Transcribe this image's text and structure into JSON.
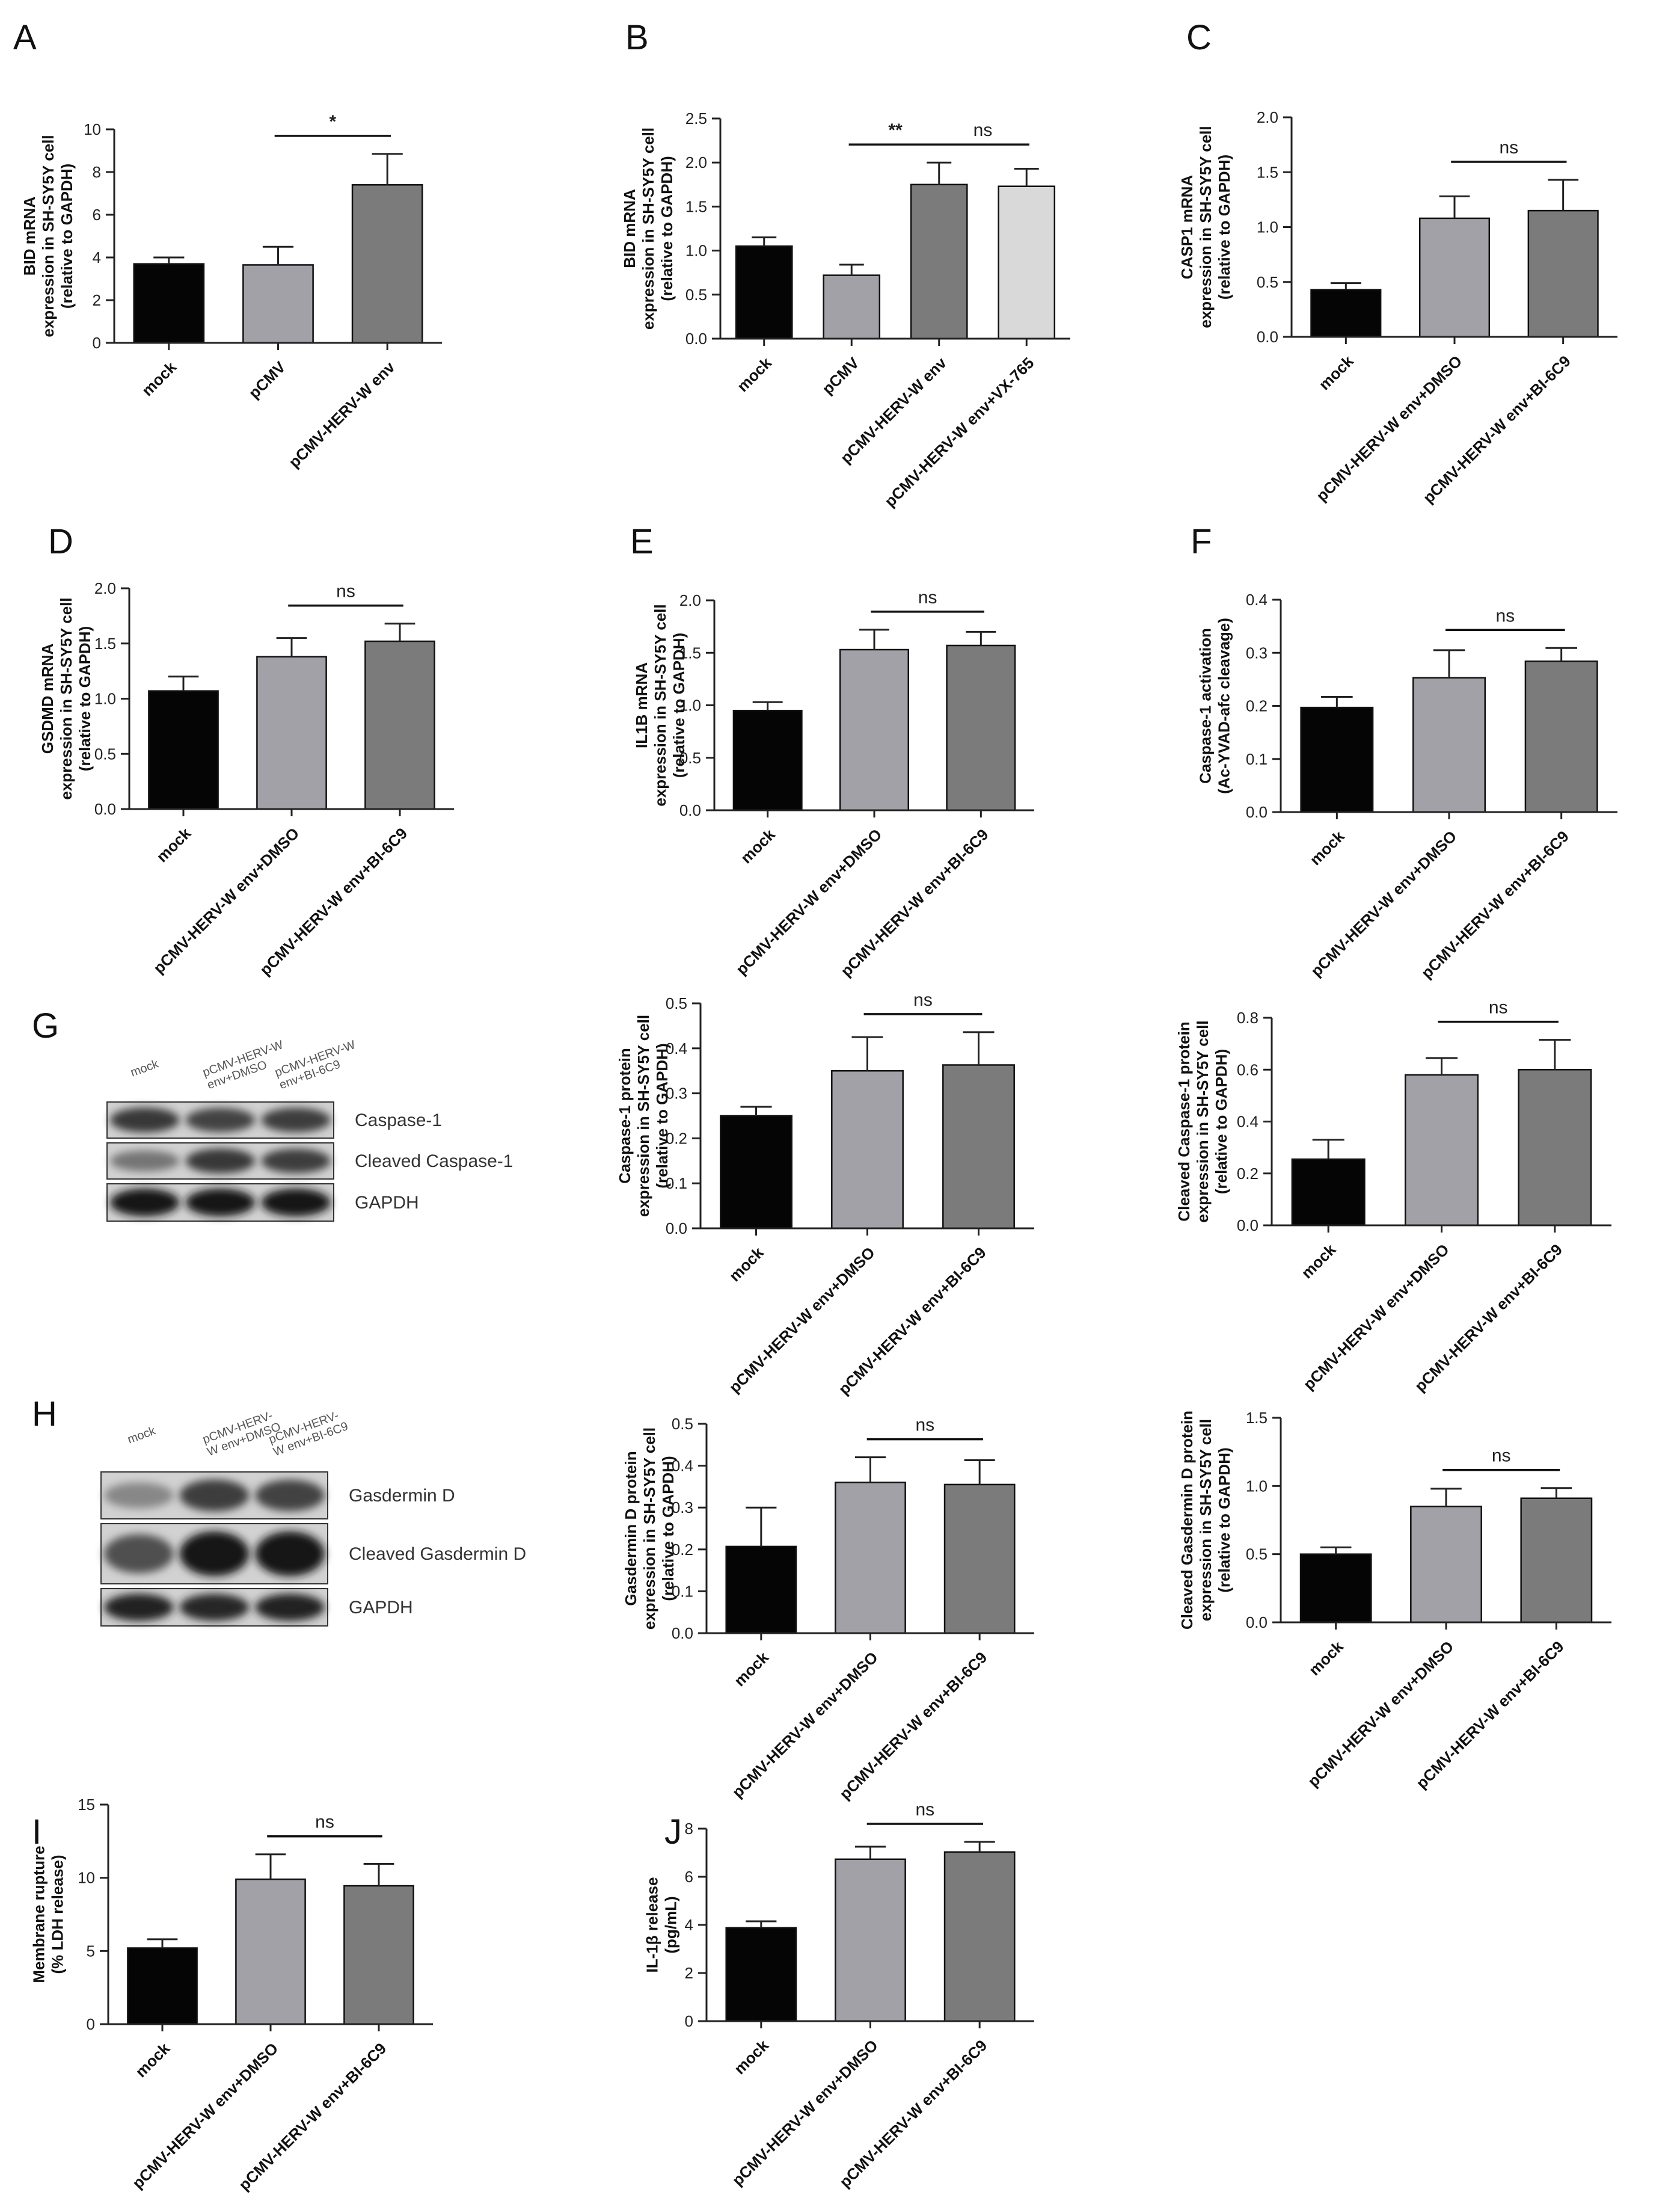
{
  "chart_data": [
    {
      "id": "A",
      "panel_letter": "A",
      "type": "bar",
      "ylabel": [
        "BID mRNA",
        "expression in SH-SY5Y cell",
        "(relative to GAPDH)"
      ],
      "categories": [
        "mock",
        "pCMV",
        "pCMV-HERV-W env"
      ],
      "values": [
        3.7,
        3.65,
        7.4
      ],
      "errors": [
        0.3,
        0.85,
        1.45
      ],
      "colors": [
        "#050505",
        "#a2a1a8",
        "#7b7b7b"
      ],
      "ylim": [
        0,
        10
      ],
      "yticks": [
        "0",
        "2",
        "4",
        "6",
        "8",
        "10"
      ],
      "brackets": [
        {
          "from": 1,
          "to": 2,
          "label": "*"
        }
      ]
    },
    {
      "id": "B",
      "panel_letter": "B",
      "type": "bar",
      "ylabel": [
        "BID mRNA",
        "expression in SH-SY5Y cell",
        "(relative to GAPDH)"
      ],
      "categories": [
        "mock",
        "pCMV",
        "pCMV-HERV-W env",
        "pCMV-HERV-W env+VX-765"
      ],
      "values": [
        1.05,
        0.72,
        1.75,
        1.73
      ],
      "errors": [
        0.1,
        0.12,
        0.25,
        0.2
      ],
      "colors": [
        "#050505",
        "#a2a1a8",
        "#7b7b7b",
        "#d9d9d9"
      ],
      "ylim": [
        0,
        2.5
      ],
      "yticks": [
        "0.0",
        "0.5",
        "1.0",
        "1.5",
        "2.0",
        "2.5"
      ],
      "brackets": [
        {
          "from": 1,
          "to": 2,
          "label": "**"
        },
        {
          "from": 2,
          "to": 3,
          "label": "ns"
        }
      ]
    },
    {
      "id": "C",
      "panel_letter": "C",
      "type": "bar",
      "ylabel": [
        "CASP1 mRNA",
        "expression in SH-SY5Y cell",
        "(relative to GAPDH)"
      ],
      "categories": [
        "mock",
        "pCMV-HERV-W env+DMSO",
        "pCMV-HERV-W env+BI-6C9"
      ],
      "values": [
        0.43,
        1.08,
        1.15
      ],
      "errors": [
        0.06,
        0.2,
        0.28
      ],
      "colors": [
        "#050505",
        "#a2a1a8",
        "#7b7b7b"
      ],
      "ylim": [
        0,
        2.0
      ],
      "yticks": [
        "0.0",
        "0.5",
        "1.0",
        "1.5",
        "2.0"
      ],
      "brackets": [
        {
          "from": 1,
          "to": 2,
          "label": "ns"
        }
      ]
    },
    {
      "id": "D",
      "panel_letter": "D",
      "type": "bar",
      "ylabel": [
        "GSDMD mRNA",
        "expression in SH-SY5Y cell",
        "(relative to GAPDH)"
      ],
      "categories": [
        "mock",
        "pCMV-HERV-W env+DMSO",
        "pCMV-HERV-W env+BI-6C9"
      ],
      "values": [
        1.07,
        1.38,
        1.52
      ],
      "errors": [
        0.13,
        0.17,
        0.16
      ],
      "colors": [
        "#050505",
        "#a2a1a8",
        "#7b7b7b"
      ],
      "ylim": [
        0,
        2.0
      ],
      "yticks": [
        "0.0",
        "0.5",
        "1.0",
        "1.5",
        "2.0"
      ],
      "brackets": [
        {
          "from": 1,
          "to": 2,
          "label": "ns"
        }
      ]
    },
    {
      "id": "E",
      "panel_letter": "E",
      "type": "bar",
      "ylabel": [
        "IL1B mRNA",
        "expression in SH-SY5Y cell",
        "(relative to GAPDH)"
      ],
      "categories": [
        "mock",
        "pCMV-HERV-W env+DMSO",
        "pCMV-HERV-W env+BI-6C9"
      ],
      "values": [
        0.95,
        1.53,
        1.57
      ],
      "errors": [
        0.08,
        0.19,
        0.13
      ],
      "colors": [
        "#050505",
        "#a2a1a8",
        "#7b7b7b"
      ],
      "ylim": [
        0,
        2.0
      ],
      "yticks": [
        "0.0",
        "0.5",
        "1.0",
        "1.5",
        "2.0"
      ],
      "brackets": [
        {
          "from": 1,
          "to": 2,
          "label": "ns"
        }
      ]
    },
    {
      "id": "F",
      "panel_letter": "F",
      "type": "bar",
      "ylabel": [
        "Caspase-1 activation",
        "(Ac-YVAD-afc cleavage)"
      ],
      "categories": [
        "mock",
        "pCMV-HERV-W env+DMSO",
        "pCMV-HERV-W env+BI-6C9"
      ],
      "values": [
        0.197,
        0.253,
        0.284
      ],
      "errors": [
        0.02,
        0.052,
        0.025
      ],
      "colors": [
        "#050505",
        "#a2a1a8",
        "#7b7b7b"
      ],
      "ylim": [
        0,
        0.4
      ],
      "yticks": [
        "0.0",
        "0.1",
        "0.2",
        "0.3",
        "0.4"
      ],
      "brackets": [
        {
          "from": 1,
          "to": 2,
          "label": "ns"
        }
      ]
    },
    {
      "id": "G1",
      "panel_letter": "",
      "type": "bar",
      "ylabel": [
        "Caspase-1 protein",
        "expression in SH-SY5Y cell",
        "(relative to GAPDH)"
      ],
      "categories": [
        "mock",
        "pCMV-HERV-W env+DMSO",
        "pCMV-HERV-W env+BI-6C9"
      ],
      "values": [
        0.25,
        0.35,
        0.363
      ],
      "errors": [
        0.02,
        0.075,
        0.073
      ],
      "colors": [
        "#050505",
        "#a2a1a8",
        "#7b7b7b"
      ],
      "ylim": [
        0,
        0.5
      ],
      "yticks": [
        "0.0",
        "0.1",
        "0.2",
        "0.3",
        "0.4",
        "0.5"
      ],
      "brackets": [
        {
          "from": 1,
          "to": 2,
          "label": "ns"
        }
      ]
    },
    {
      "id": "G2",
      "panel_letter": "",
      "type": "bar",
      "ylabel": [
        "Cleaved Caspase-1 protein",
        "expression in SH-SY5Y cell",
        "(relative to GAPDH)"
      ],
      "categories": [
        "mock",
        "pCMV-HERV-W env+DMSO",
        "pCMV-HERV-W env+BI-6C9"
      ],
      "values": [
        0.255,
        0.58,
        0.6
      ],
      "errors": [
        0.075,
        0.065,
        0.115
      ],
      "colors": [
        "#050505",
        "#a2a1a8",
        "#7b7b7b"
      ],
      "ylim": [
        0,
        0.8
      ],
      "yticks": [
        "0.0",
        "0.2",
        "0.4",
        "0.6",
        "0.8"
      ],
      "brackets": [
        {
          "from": 1,
          "to": 2,
          "label": "ns"
        }
      ]
    },
    {
      "id": "H1",
      "panel_letter": "",
      "type": "bar",
      "ylabel": [
        "Gasdermin D protein",
        "expression in SH-SY5Y cell",
        "(relative to GAPDH)"
      ],
      "categories": [
        "mock",
        "pCMV-HERV-W env+DMSO",
        "pCMV-HERV-W env+BI-6C9"
      ],
      "values": [
        0.207,
        0.36,
        0.355
      ],
      "errors": [
        0.093,
        0.06,
        0.058
      ],
      "colors": [
        "#050505",
        "#a2a1a8",
        "#7b7b7b"
      ],
      "ylim": [
        0,
        0.5
      ],
      "yticks": [
        "0.0",
        "0.1",
        "0.2",
        "0.3",
        "0.4",
        "0.5"
      ],
      "brackets": [
        {
          "from": 1,
          "to": 2,
          "label": "ns"
        }
      ]
    },
    {
      "id": "H2",
      "panel_letter": "",
      "type": "bar",
      "ylabel": [
        "Cleaved Gasdermin D protein",
        "expression in SH-SY5Y cell",
        "(relative to GAPDH)"
      ],
      "categories": [
        "mock",
        "pCMV-HERV-W env+DMSO",
        "pCMV-HERV-W env+BI-6C9"
      ],
      "values": [
        0.5,
        0.85,
        0.91
      ],
      "errors": [
        0.05,
        0.13,
        0.075
      ],
      "colors": [
        "#050505",
        "#a2a1a8",
        "#7b7b7b"
      ],
      "ylim": [
        0,
        1.5
      ],
      "yticks": [
        "0.0",
        "0.5",
        "1.0",
        "1.5"
      ],
      "brackets": [
        {
          "from": 1,
          "to": 2,
          "label": "ns"
        }
      ]
    },
    {
      "id": "I",
      "panel_letter": "I",
      "type": "bar",
      "ylabel": [
        "Membrane rupture",
        "(% LDH release)"
      ],
      "categories": [
        "mock",
        "pCMV-HERV-W env+DMSO",
        "pCMV-HERV-W env+BI-6C9"
      ],
      "values": [
        5.2,
        9.9,
        9.45
      ],
      "errors": [
        0.6,
        1.7,
        1.5
      ],
      "colors": [
        "#050505",
        "#a2a1a8",
        "#7b7b7b"
      ],
      "ylim": [
        0,
        15
      ],
      "yticks": [
        "0",
        "5",
        "10",
        "15"
      ],
      "brackets": [
        {
          "from": 1,
          "to": 2,
          "label": "ns"
        }
      ]
    },
    {
      "id": "J",
      "panel_letter": "J",
      "type": "bar",
      "ylabel": [
        "IL-1β release",
        "(pg/mL)"
      ],
      "categories": [
        "mock",
        "pCMV-HERV-W env+DMSO",
        "pCMV-HERV-W env+BI-6C9"
      ],
      "values": [
        3.88,
        6.73,
        7.03
      ],
      "errors": [
        0.27,
        0.52,
        0.42
      ],
      "colors": [
        "#050505",
        "#a2a1a8",
        "#7b7b7b"
      ],
      "ylim": [
        0,
        8
      ],
      "yticks": [
        "0",
        "2",
        "4",
        "6",
        "8"
      ],
      "brackets": [
        {
          "from": 1,
          "to": 2,
          "label": "ns"
        }
      ]
    }
  ],
  "blots": [
    {
      "id": "G",
      "panel_letter": "G",
      "lanes": [
        [
          "mock"
        ],
        [
          "pCMV-HERV-W",
          "env+DMSO"
        ],
        [
          "pCMV-HERV-W",
          "env+BI-6C9"
        ]
      ],
      "bands": [
        {
          "label": "Caspase-1",
          "intensity": [
            0.78,
            0.72,
            0.75
          ]
        },
        {
          "label": "Cleaved Caspase-1",
          "intensity": [
            0.45,
            0.78,
            0.75
          ]
        },
        {
          "label": "GAPDH",
          "intensity": [
            0.95,
            0.95,
            0.95
          ]
        }
      ]
    },
    {
      "id": "H",
      "panel_letter": "H",
      "lanes": [
        [
          "mock"
        ],
        [
          "pCMV-HERV-",
          "W env+DMSO"
        ],
        [
          "pCMV-HERV-",
          "W env+BI-6C9"
        ]
      ],
      "bands": [
        {
          "label": "Gasdermin D",
          "intensity": [
            0.35,
            0.75,
            0.72
          ]
        },
        {
          "label": "Cleaved Gasdermin D",
          "intensity": [
            0.65,
            0.95,
            0.95
          ]
        },
        {
          "label": "GAPDH",
          "intensity": [
            0.9,
            0.88,
            0.9
          ]
        }
      ]
    }
  ]
}
